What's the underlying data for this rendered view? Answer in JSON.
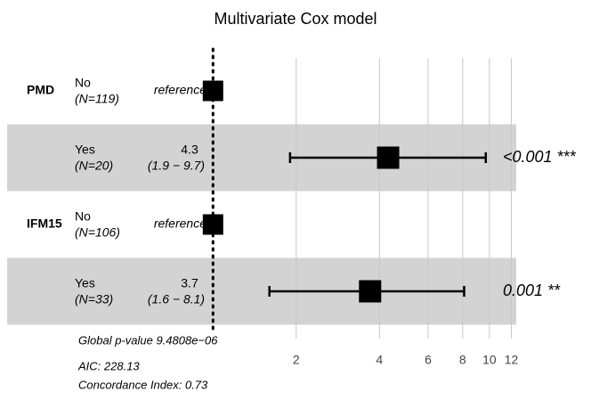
{
  "chart_data": {
    "type": "forest",
    "title": "Multivariate Cox model",
    "log_scale": true,
    "xlim": [
      0.18,
      12.5
    ],
    "xticks": [
      2,
      4,
      6,
      8,
      10,
      12
    ],
    "reference_line": 1,
    "grid": true,
    "color": "#000000",
    "shade_color": "#d3d3d3",
    "rows": [
      {
        "group": "PMD",
        "level": "No",
        "n": "(N=119)",
        "estimate_label": "reference",
        "hr": 1,
        "shaded": false
      },
      {
        "level": "Yes",
        "n": "(N=20)",
        "hr": 4.3,
        "ci": [
          1.9,
          9.7
        ],
        "ci_label": "(1.9 − 9.7)",
        "p_label": "<0.001 ***",
        "shaded": true
      },
      {
        "group": "IFM15",
        "level": "No",
        "n": "(N=106)",
        "estimate_label": "reference",
        "hr": 1,
        "shaded": false
      },
      {
        "level": "Yes",
        "n": "(N=33)",
        "hr": 3.7,
        "ci": [
          1.6,
          8.1
        ],
        "ci_label": "(1.6 − 8.1)",
        "p_label": "0.001 **",
        "shaded": true
      }
    ],
    "footer": [
      "Global p-value 9.4808e−06",
      "AIC: 228.13",
      "Concordance Index: 0.73"
    ]
  }
}
